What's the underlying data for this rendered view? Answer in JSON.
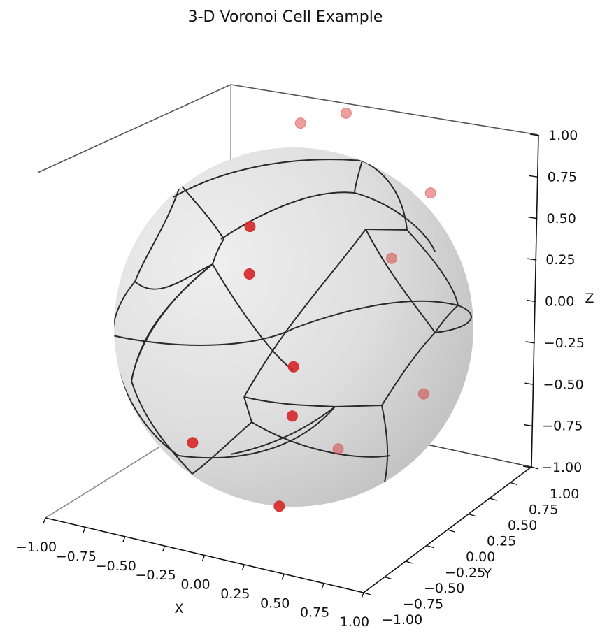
{
  "chart_data": {
    "type": "scatter",
    "title": "3-D Voronoi Cell Example",
    "xlabel": "X",
    "ylabel": "Y",
    "zlabel": "Z",
    "xlim": [
      -1.0,
      1.0
    ],
    "ylim": [
      -1.0,
      1.0
    ],
    "zlim": [
      -1.0,
      1.0
    ],
    "ticks": [
      "−1.00",
      "−0.75",
      "−0.50",
      "−0.25",
      "0.00",
      "0.25",
      "0.50",
      "0.75",
      "1.00"
    ],
    "point_color": "#d62728",
    "sphere_color": "#d9d9d9",
    "edge_color": "#222222",
    "points": [
      {
        "x": -0.45,
        "y": 0.6,
        "z": 0.95
      },
      {
        "x": -0.15,
        "y": 0.8,
        "z": 0.98
      },
      {
        "x": -0.7,
        "y": 0.3,
        "z": 0.4
      },
      {
        "x": 0.6,
        "y": 0.95,
        "z": 0.55
      },
      {
        "x": -0.3,
        "y": -0.2,
        "z": 0.35
      },
      {
        "x": 0.3,
        "y": 0.85,
        "z": 0.15
      },
      {
        "x": 0.4,
        "y": -0.5,
        "z": -0.3
      },
      {
        "x": 0.85,
        "y": 0.6,
        "z": -0.5
      },
      {
        "x": -0.6,
        "y": -0.5,
        "z": -0.6
      },
      {
        "x": -0.35,
        "y": 0.45,
        "z": -0.45
      },
      {
        "x": 0.0,
        "y": 0.6,
        "z": -0.95
      },
      {
        "x": 0.05,
        "y": -0.2,
        "z": -1.0
      }
    ]
  }
}
